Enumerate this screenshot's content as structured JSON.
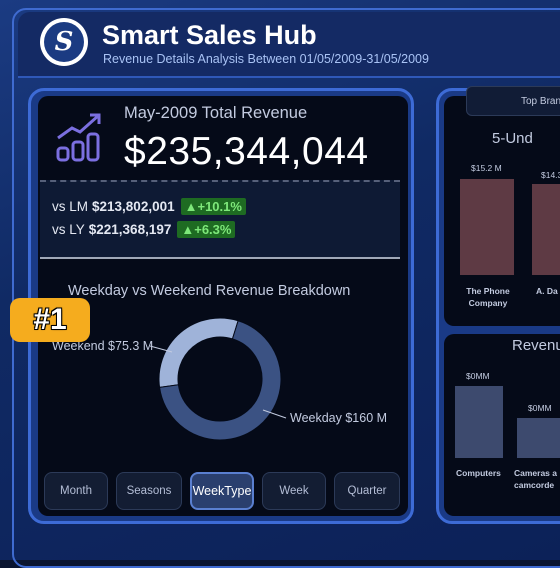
{
  "header": {
    "logo_letter": "S",
    "title": "Smart Sales Hub",
    "subtitle": "Revenue Details Analysis Between 01/05/2009-31/05/2009"
  },
  "kpi": {
    "label": "May-2009 Total Revenue",
    "value": "$235,344,044",
    "icon": "bar-chart-trend-icon",
    "comparisons": [
      {
        "label": "vs LM",
        "value": "$213,802,001",
        "change": "+10.1%"
      },
      {
        "label": "vs LY",
        "value": "$221,368,197",
        "change": "+6.3%"
      }
    ]
  },
  "annotation_badge": "#1",
  "donut": {
    "title": "Weekday vs Weekend Revenue Breakdown",
    "weekend_label": "Weekend $75.3 M",
    "weekday_label": "Weekday $160 M",
    "weekend_value": 75.3,
    "weekday_value": 160
  },
  "tabs": [
    {
      "label": "Month",
      "active": false
    },
    {
      "label": "Seasons",
      "active": false
    },
    {
      "label": "WeekType",
      "active": true
    },
    {
      "label": "Week",
      "active": false
    },
    {
      "label": "Quarter",
      "active": false
    }
  ],
  "right_top": {
    "button_label": "Top Brands",
    "title": "5-Und",
    "bars": [
      {
        "value_label": "$15.2 M",
        "category_line1": "The Phone",
        "category_line2": "Company"
      },
      {
        "value_label": "$14.3",
        "category_line1": "A. Da",
        "category_line2": ""
      }
    ]
  },
  "right_bottom": {
    "title": "Revenu",
    "bars": [
      {
        "value_label": "$0MM",
        "category_line1": "Computers",
        "category_line2": ""
      },
      {
        "value_label": "$0MM",
        "category_line1": "Cameras a",
        "category_line2": "camcorde"
      }
    ]
  },
  "colors": {
    "accent_blue": "#3d6bd6",
    "bar_red": "#5e3a44",
    "bar_blue": "#3d4a6e",
    "donut_weekday": "#3b5283",
    "donut_weekend": "#9fb3d9",
    "positive_green": "#7ee87a",
    "badge_orange": "#f5ac1e"
  }
}
